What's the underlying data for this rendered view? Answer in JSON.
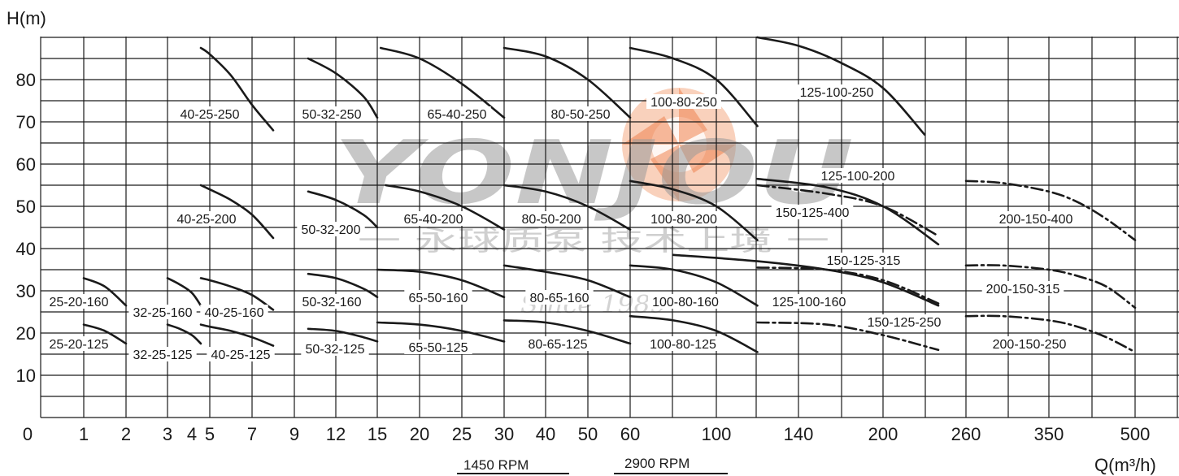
{
  "chart_data": {
    "type": "line",
    "ylabel": "H(m)",
    "xlabel": "Q(m³/h)",
    "ylim": [
      0,
      90
    ],
    "y_ticks": [
      "10",
      "20",
      "30",
      "40",
      "50",
      "60",
      "70",
      "80"
    ],
    "x_ticks": [
      "0",
      "1",
      "2",
      "3",
      "4",
      "5",
      "7",
      "9",
      "12",
      "15",
      "20",
      "25",
      "30",
      "40",
      "50",
      "60",
      "100",
      "140",
      "200",
      "260",
      "350",
      "500"
    ],
    "grid": true,
    "rpm_labels": [
      "1450 RPM",
      "2900 RPM"
    ],
    "watermark": {
      "brand": "YONJOU",
      "slogan": "一 永球质泵 技术上境 一",
      "since": "Since 1989"
    },
    "series": [
      {
        "name": "40-25-250",
        "x": [
          4.5,
          5,
          6,
          7,
          8
        ],
        "y": [
          87.5,
          86,
          81,
          74,
          68
        ]
      },
      {
        "name": "50-32-250",
        "x": [
          10,
          12,
          14,
          15
        ],
        "y": [
          85,
          81.5,
          76,
          71
        ]
      },
      {
        "name": "65-40-250",
        "x": [
          15.4,
          20,
          25,
          30
        ],
        "y": [
          87.5,
          85,
          79,
          71
        ]
      },
      {
        "name": "80-50-250",
        "x": [
          30,
          40,
          50,
          60
        ],
        "y": [
          87.5,
          85.5,
          80,
          71
        ]
      },
      {
        "name": "100-80-250",
        "x": [
          60,
          80,
          100,
          120
        ],
        "y": [
          87.5,
          85,
          80,
          69
        ]
      },
      {
        "name": "125-100-250",
        "x": [
          120,
          140,
          170,
          200,
          230
        ],
        "y": [
          90,
          88,
          84,
          78,
          67
        ]
      },
      {
        "name": "40-25-200",
        "x": [
          4.5,
          5,
          6,
          7,
          8
        ],
        "y": [
          55,
          54,
          51.5,
          48,
          42.5
        ]
      },
      {
        "name": "50-32-200",
        "x": [
          10,
          12,
          14,
          15
        ],
        "y": [
          53.5,
          51.5,
          48,
          45
        ]
      },
      {
        "name": "65-40-200",
        "x": [
          16,
          20,
          25,
          30
        ],
        "y": [
          55,
          53.5,
          50,
          44.5
        ]
      },
      {
        "name": "80-50-200",
        "x": [
          30,
          40,
          50,
          60
        ],
        "y": [
          55,
          53.5,
          50,
          44.5
        ]
      },
      {
        "name": "100-80-200",
        "x": [
          60,
          80,
          100,
          120
        ],
        "y": [
          56,
          54,
          50,
          42
        ]
      },
      {
        "name": "125-100-200",
        "x": [
          120,
          160,
          200,
          240
        ],
        "y": [
          56.5,
          54.5,
          50,
          41
        ]
      },
      {
        "name": "150-125-400",
        "x": [
          120,
          160,
          200,
          240
        ],
        "y": [
          55,
          53,
          50,
          43
        ]
      },
      {
        "name": "200-150-400",
        "x": [
          260,
          300,
          350,
          400,
          450,
          500
        ],
        "y": [
          56,
          55.5,
          53.5,
          51,
          47,
          42
        ]
      },
      {
        "name": "25-20-160",
        "x": [
          1,
          1.5,
          2
        ],
        "y": [
          33,
          31,
          26.5
        ]
      },
      {
        "name": "32-25-160",
        "x": [
          3,
          3.5,
          4,
          4.5
        ],
        "y": [
          33,
          31.5,
          29.5,
          26.5
        ]
      },
      {
        "name": "40-25-160",
        "x": [
          4.5,
          5,
          6,
          7,
          8
        ],
        "y": [
          33,
          32.5,
          31,
          29,
          25.5
        ]
      },
      {
        "name": "50-32-160",
        "x": [
          10,
          12,
          14,
          15
        ],
        "y": [
          34,
          33,
          30.5,
          28.5
        ]
      },
      {
        "name": "65-50-160",
        "x": [
          15,
          20,
          25,
          30
        ],
        "y": [
          35,
          34.5,
          32.5,
          28.5
        ]
      },
      {
        "name": "80-65-160",
        "x": [
          30,
          40,
          50,
          60
        ],
        "y": [
          36,
          34.5,
          32.5,
          28.5
        ]
      },
      {
        "name": "100-80-160",
        "x": [
          60,
          80,
          100,
          120
        ],
        "y": [
          36,
          35,
          32,
          26.5
        ]
      },
      {
        "name": "125-100-160",
        "x": [
          80,
          120,
          160,
          200,
          240
        ],
        "y": [
          38.5,
          37,
          35,
          32,
          26.5
        ]
      },
      {
        "name": "150-125-315",
        "x": [
          120,
          160,
          200,
          240
        ],
        "y": [
          35.5,
          35,
          32.5,
          27
        ]
      },
      {
        "name": "200-150-315",
        "x": [
          260,
          300,
          350,
          400,
          450,
          500
        ],
        "y": [
          36,
          36,
          35,
          33.5,
          31,
          26
        ]
      },
      {
        "name": "25-20-125",
        "x": [
          1,
          1.5,
          2
        ],
        "y": [
          22,
          20.5,
          17.5
        ]
      },
      {
        "name": "32-25-125",
        "x": [
          3,
          3.5,
          4,
          4.5
        ],
        "y": [
          22,
          21,
          19.5,
          17.5
        ]
      },
      {
        "name": "40-25-125",
        "x": [
          4.5,
          5,
          6,
          7,
          8
        ],
        "y": [
          22,
          21.5,
          20.5,
          19,
          17
        ]
      },
      {
        "name": "50-32-125",
        "x": [
          10,
          12,
          14,
          15
        ],
        "y": [
          21,
          20.5,
          19,
          18
        ]
      },
      {
        "name": "65-50-125",
        "x": [
          15,
          20,
          25,
          30
        ],
        "y": [
          22.5,
          22,
          20.5,
          18
        ]
      },
      {
        "name": "80-65-125",
        "x": [
          30,
          40,
          50,
          60
        ],
        "y": [
          23,
          22.5,
          20.5,
          17.5
        ]
      },
      {
        "name": "100-80-125",
        "x": [
          60,
          80,
          100,
          120
        ],
        "y": [
          24,
          23,
          20.5,
          15.5
        ]
      },
      {
        "name": "150-125-250",
        "x": [
          120,
          160,
          200,
          240
        ],
        "y": [
          22.5,
          22,
          19.5,
          16
        ]
      },
      {
        "name": "200-150-250",
        "x": [
          260,
          300,
          350,
          400,
          450,
          500
        ],
        "y": [
          24,
          24,
          23,
          21.5,
          19,
          15.5
        ]
      }
    ]
  }
}
